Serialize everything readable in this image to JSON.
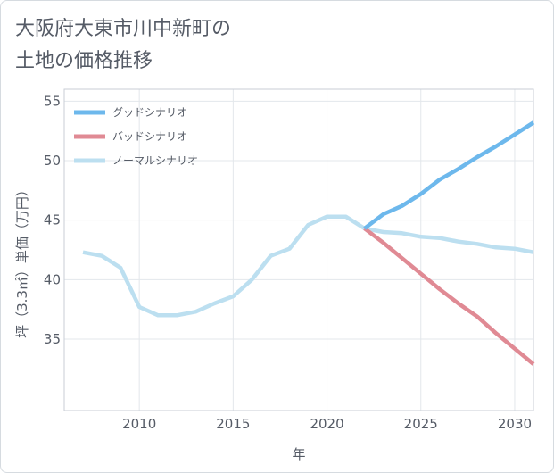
{
  "page": {
    "title_line1": "大阪府大東市川中新町の",
    "title_line2": "土地の価格推移"
  },
  "chart_data": {
    "type": "line",
    "title": "大阪府大東市川中新町の土地の価格推移",
    "xlabel": "年",
    "ylabel": "坪（3.3㎡）単価（万円）",
    "xlim": [
      2006,
      2031
    ],
    "ylim": [
      29,
      56
    ],
    "xticks": [
      2010,
      2015,
      2020,
      2025,
      2030
    ],
    "yticks": [
      35,
      40,
      45,
      50,
      55
    ],
    "grid": true,
    "legend_position": "top-left",
    "series": [
      {
        "name": "グッドシナリオ",
        "color": "#6db8ec",
        "x": [
          2022,
          2023,
          2024,
          2025,
          2026,
          2027,
          2028,
          2029,
          2030,
          2031
        ],
        "y": [
          44.3,
          45.5,
          46.2,
          47.2,
          48.4,
          49.3,
          50.3,
          51.2,
          52.2,
          53.2
        ]
      },
      {
        "name": "バッドシナリオ",
        "color": "#e08a94",
        "x": [
          2022,
          2023,
          2024,
          2025,
          2026,
          2027,
          2028,
          2029,
          2030,
          2031
        ],
        "y": [
          44.3,
          43.1,
          41.8,
          40.5,
          39.2,
          38.0,
          36.9,
          35.5,
          34.2,
          32.9
        ]
      },
      {
        "name": "ノーマルシナリオ",
        "color": "#bcdff0",
        "x": [
          2007,
          2008,
          2009,
          2010,
          2011,
          2012,
          2013,
          2014,
          2015,
          2016,
          2017,
          2018,
          2019,
          2020,
          2021,
          2022,
          2023,
          2024,
          2025,
          2026,
          2027,
          2028,
          2029,
          2030,
          2031
        ],
        "y": [
          42.3,
          42.0,
          41.0,
          37.7,
          37.0,
          37.0,
          37.3,
          38.0,
          38.6,
          40.0,
          42.0,
          42.6,
          44.6,
          45.3,
          45.3,
          44.3,
          44.0,
          43.9,
          43.6,
          43.5,
          43.2,
          43.0,
          42.7,
          42.6,
          42.3
        ]
      }
    ]
  }
}
